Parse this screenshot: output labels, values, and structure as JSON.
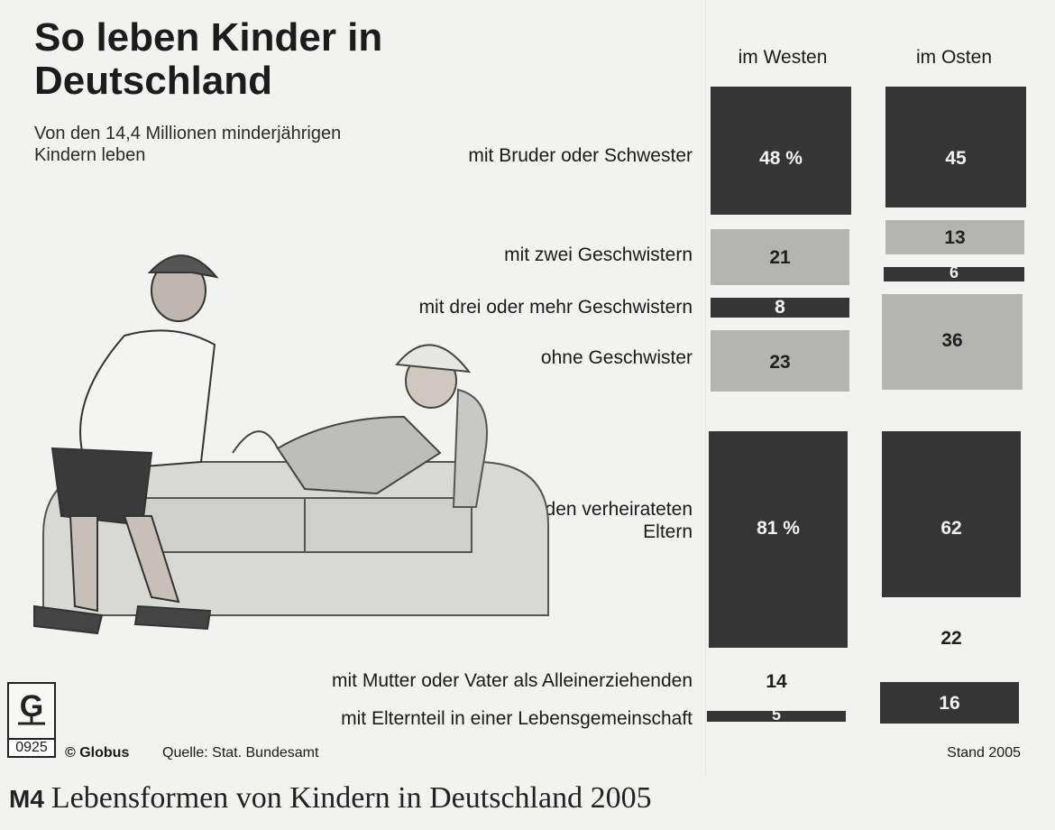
{
  "title": "So leben Kinder in Deutschland",
  "subtitle": "Von den 14,4 Millionen minderjährigen Kindern leben",
  "columns": [
    "im Westen",
    "im Osten"
  ],
  "labels": {
    "siblings_one": "mit Bruder oder Schwester",
    "siblings_two": "mit zwei Geschwistern",
    "siblings_three": "mit drei oder mehr Geschwistern",
    "no_siblings": "ohne Geschwister",
    "married": "bei den verheirateten Eltern",
    "single_parent": "mit Mutter oder Vater als Alleinerziehenden",
    "partnership": "mit Elternteil in einer Lebensgemeinschaft"
  },
  "values": {
    "west": {
      "siblings_one": "48 %",
      "siblings_two": "21",
      "siblings_three": "8",
      "no_siblings": "23",
      "married": "81 %",
      "single_parent": "14",
      "partnership": "5"
    },
    "east": {
      "siblings_one": "45",
      "siblings_two": "13",
      "siblings_three": "6",
      "no_siblings": "36",
      "married": "62",
      "single_parent": "22",
      "partnership": "16"
    }
  },
  "footer": {
    "logo_code": "0925",
    "publisher": "© Globus",
    "source": "Quelle: Stat. Bundesamt",
    "date": "Stand 2005"
  },
  "caption": {
    "mark": "M4",
    "text": "Lebensformen von Kindern in Deutschland 2005"
  },
  "colors": {
    "dark": "#353535",
    "light": "#b4b4b2",
    "background": "#f2f2f0"
  },
  "chart_data": [
    {
      "type": "bar",
      "title": "So leben Kinder in Deutschland",
      "subtitle": "Von den 14,4 Millionen minderjährigen Kindern leben",
      "categories": [
        "mit Bruder oder Schwester",
        "mit zwei Geschwistern",
        "mit drei oder mehr Geschwistern",
        "ohne Geschwister"
      ],
      "series": [
        {
          "name": "im Westen",
          "values": [
            48,
            21,
            8,
            23
          ]
        },
        {
          "name": "im Osten",
          "values": [
            45,
            13,
            6,
            36
          ]
        }
      ],
      "stacked": true
    },
    {
      "type": "bar",
      "categories": [
        "bei den verheirateten Eltern",
        "mit Mutter oder Vater als Alleinerziehenden",
        "mit Elternteil in einer Lebensgemeinschaft"
      ],
      "series": [
        {
          "name": "im Westen",
          "values": [
            81,
            14,
            5
          ]
        },
        {
          "name": "im Osten",
          "values": [
            62,
            22,
            16
          ]
        }
      ],
      "stacked": true
    }
  ]
}
